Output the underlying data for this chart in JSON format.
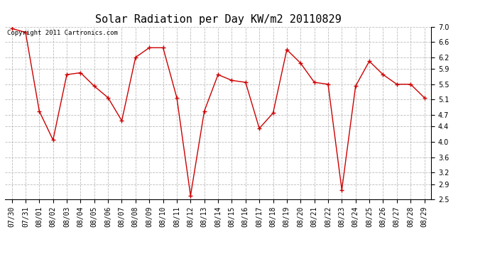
{
  "title": "Solar Radiation per Day KW/m2 20110829",
  "copyright_text": "Copyright 2011 Cartronics.com",
  "dates": [
    "07/30",
    "07/31",
    "08/01",
    "08/02",
    "08/03",
    "08/04",
    "08/05",
    "08/06",
    "08/07",
    "08/08",
    "08/09",
    "08/10",
    "08/11",
    "08/12",
    "08/13",
    "08/14",
    "08/15",
    "08/16",
    "08/17",
    "08/18",
    "08/19",
    "08/20",
    "08/21",
    "08/22",
    "08/23",
    "08/24",
    "08/25",
    "08/26",
    "08/27",
    "08/28",
    "08/29"
  ],
  "values": [
    6.95,
    6.85,
    4.8,
    4.05,
    5.75,
    5.8,
    5.45,
    5.15,
    4.55,
    6.2,
    6.45,
    6.45,
    5.15,
    2.6,
    4.8,
    5.75,
    5.6,
    5.55,
    4.35,
    4.75,
    6.4,
    6.05,
    5.55,
    5.5,
    2.75,
    5.45,
    6.1,
    5.75,
    5.5,
    5.5,
    5.15
  ],
  "line_color": "#cc0000",
  "marker": "+",
  "marker_size": 5,
  "ylim": [
    2.5,
    7.0
  ],
  "yticks": [
    2.5,
    2.9,
    3.2,
    3.6,
    4.0,
    4.4,
    4.7,
    5.1,
    5.5,
    5.9,
    6.2,
    6.6,
    7.0
  ],
  "bg_color": "#ffffff",
  "grid_color": "#bbbbbb",
  "title_fontsize": 11,
  "tick_fontsize": 7,
  "copyright_fontsize": 6.5
}
